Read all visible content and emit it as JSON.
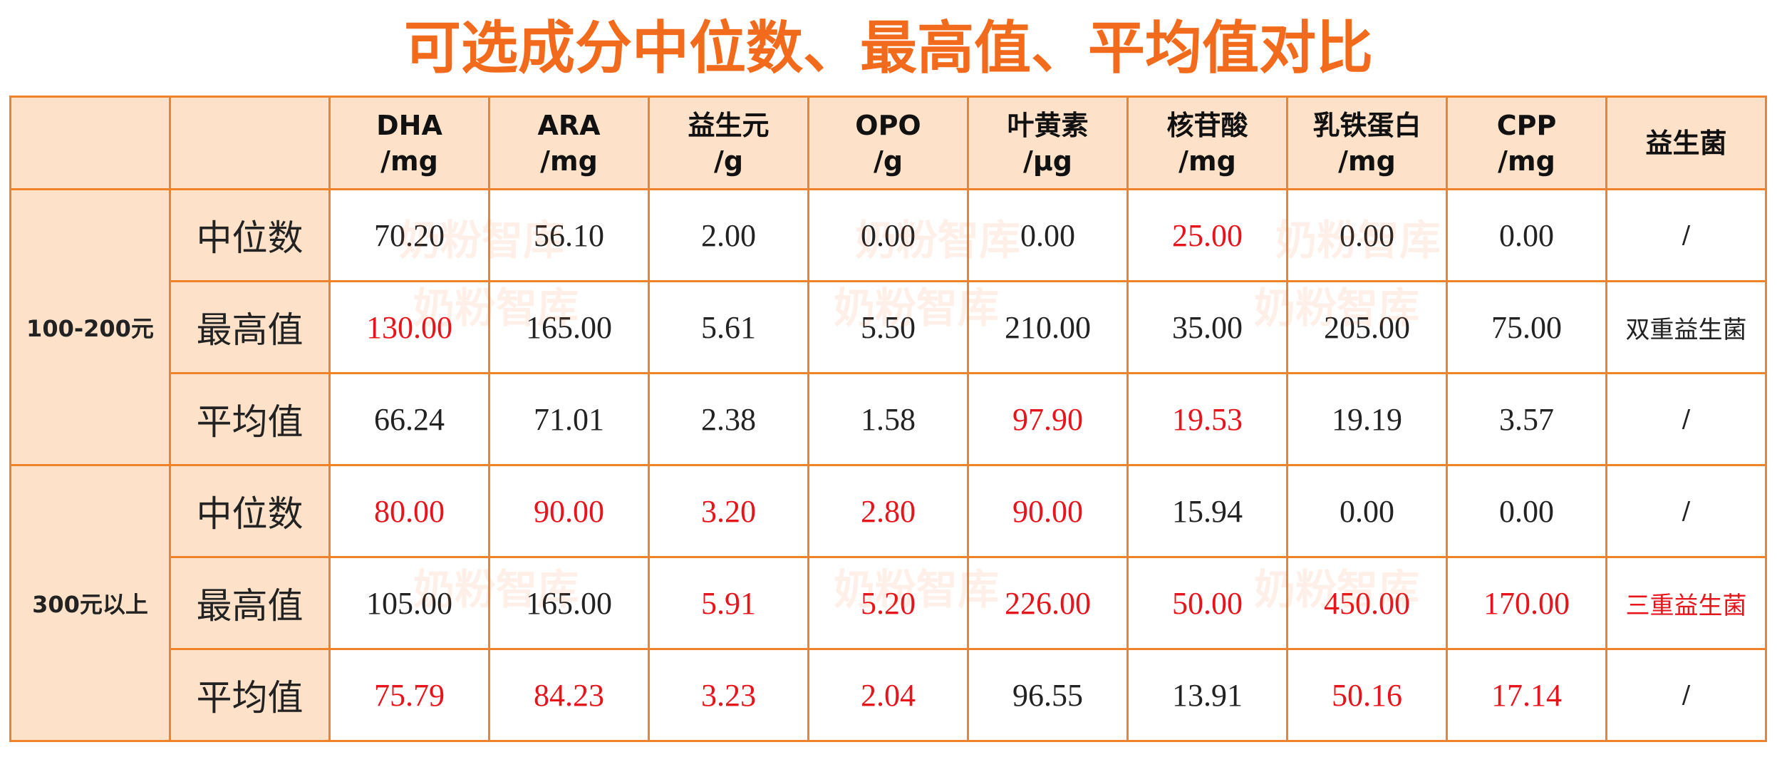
{
  "title": "可选成分中位数、最高值、平均值对比",
  "watermark": "奶粉智库",
  "highlight_color": "#e8141b",
  "table": {
    "header": [
      {
        "name": "DHA",
        "unit": "/mg"
      },
      {
        "name": "ARA",
        "unit": "/mg"
      },
      {
        "name": "益生元",
        "unit": "/g"
      },
      {
        "name": "OPO",
        "unit": "/g"
      },
      {
        "name": "叶黄素",
        "unit": "/μg"
      },
      {
        "name": "核苷酸",
        "unit": "/mg"
      },
      {
        "name": "乳铁蛋白",
        "unit": "/mg"
      },
      {
        "name": "CPP",
        "unit": "/mg"
      },
      {
        "name": "益生菌"
      }
    ],
    "groups": [
      {
        "label": "100-200元",
        "rows": [
          {
            "label": "中位数",
            "cells": [
              "70.20",
              "56.10",
              "2.00",
              "0.00",
              "0.00",
              "25.00",
              "0.00",
              "0.00",
              "/"
            ],
            "red": [
              5
            ]
          },
          {
            "label": "最高值",
            "cells": [
              "130.00",
              "165.00",
              "5.61",
              "5.50",
              "210.00",
              "35.00",
              "205.00",
              "75.00",
              "双重益生菌"
            ],
            "red": [
              0
            ]
          },
          {
            "label": "平均值",
            "cells": [
              "66.24",
              "71.01",
              "2.38",
              "1.58",
              "97.90",
              "19.53",
              "19.19",
              "3.57",
              "/"
            ],
            "red": [
              4,
              5
            ]
          }
        ]
      },
      {
        "label": "300元以上",
        "rows": [
          {
            "label": "中位数",
            "cells": [
              "80.00",
              "90.00",
              "3.20",
              "2.80",
              "90.00",
              "15.94",
              "0.00",
              "0.00",
              "/"
            ],
            "red": [
              0,
              1,
              2,
              3,
              4
            ]
          },
          {
            "label": "最高值",
            "cells": [
              "105.00",
              "165.00",
              "5.91",
              "5.20",
              "226.00",
              "50.00",
              "450.00",
              "170.00",
              "三重益生菌"
            ],
            "red": [
              2,
              3,
              4,
              5,
              6,
              7,
              8
            ]
          },
          {
            "label": "平均值",
            "cells": [
              "75.79",
              "84.23",
              "3.23",
              "2.04",
              "96.55",
              "13.91",
              "50.16",
              "17.14",
              "/"
            ],
            "red": [
              0,
              1,
              2,
              3,
              6,
              7
            ]
          }
        ]
      }
    ]
  }
}
